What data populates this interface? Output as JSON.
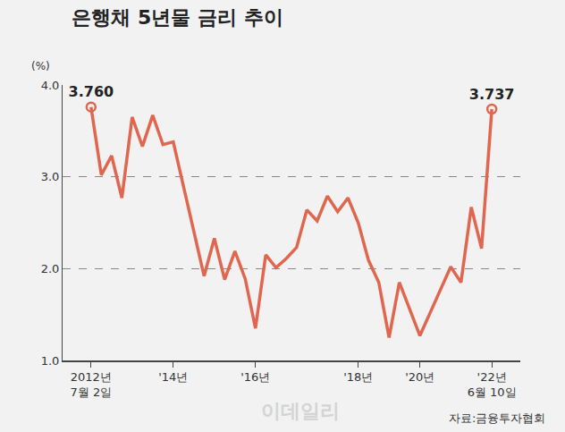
{
  "chart_data": {
    "type": "line",
    "title": "은행채 5년물 금리 추이",
    "ylabel": "(%)",
    "categories": [
      "2012년\n7월 2일",
      null,
      null,
      null,
      null,
      null,
      null,
      null,
      "'14년",
      null,
      null,
      null,
      null,
      null,
      null,
      null,
      "'16년",
      null,
      null,
      null,
      null,
      null,
      null,
      null,
      null,
      null,
      "'18년",
      null,
      null,
      null,
      null,
      null,
      "'20년",
      null,
      null,
      null,
      null,
      null,
      null,
      "'22년\n6월 10일"
    ],
    "values": [
      3.76,
      3.02,
      3.23,
      2.77,
      3.65,
      3.33,
      3.67,
      3.35,
      3.38,
      2.9,
      2.42,
      1.92,
      2.33,
      1.88,
      2.19,
      1.89,
      1.35,
      2.15,
      2.01,
      2.11,
      2.23,
      2.64,
      2.52,
      2.79,
      2.62,
      2.77,
      2.5,
      2.09,
      1.85,
      1.25,
      1.85,
      1.55,
      1.27,
      1.52,
      1.77,
      2.02,
      1.85,
      2.67,
      2.22,
      3.737
    ],
    "value_labels": [
      "3.760",
      null,
      null,
      null,
      null,
      null,
      null,
      null,
      null,
      null,
      null,
      null,
      null,
      null,
      null,
      null,
      null,
      null,
      null,
      null,
      null,
      null,
      null,
      null,
      null,
      null,
      null,
      null,
      null,
      null,
      null,
      null,
      null,
      null,
      null,
      null,
      null,
      null,
      null,
      "3.737"
    ],
    "data_labels": true,
    "color": "#e0674f",
    "marker": "circle-open",
    "ylim": [
      1,
      4
    ],
    "yticks": [
      {
        "value": 1,
        "label": "1.0"
      },
      {
        "value": 2,
        "label": "2.0"
      },
      {
        "value": 3,
        "label": "3.0"
      },
      {
        "value": 4,
        "label": "4.0"
      }
    ],
    "grid": true,
    "source": "자료:금융투자협회",
    "watermark": "이데일리"
  }
}
